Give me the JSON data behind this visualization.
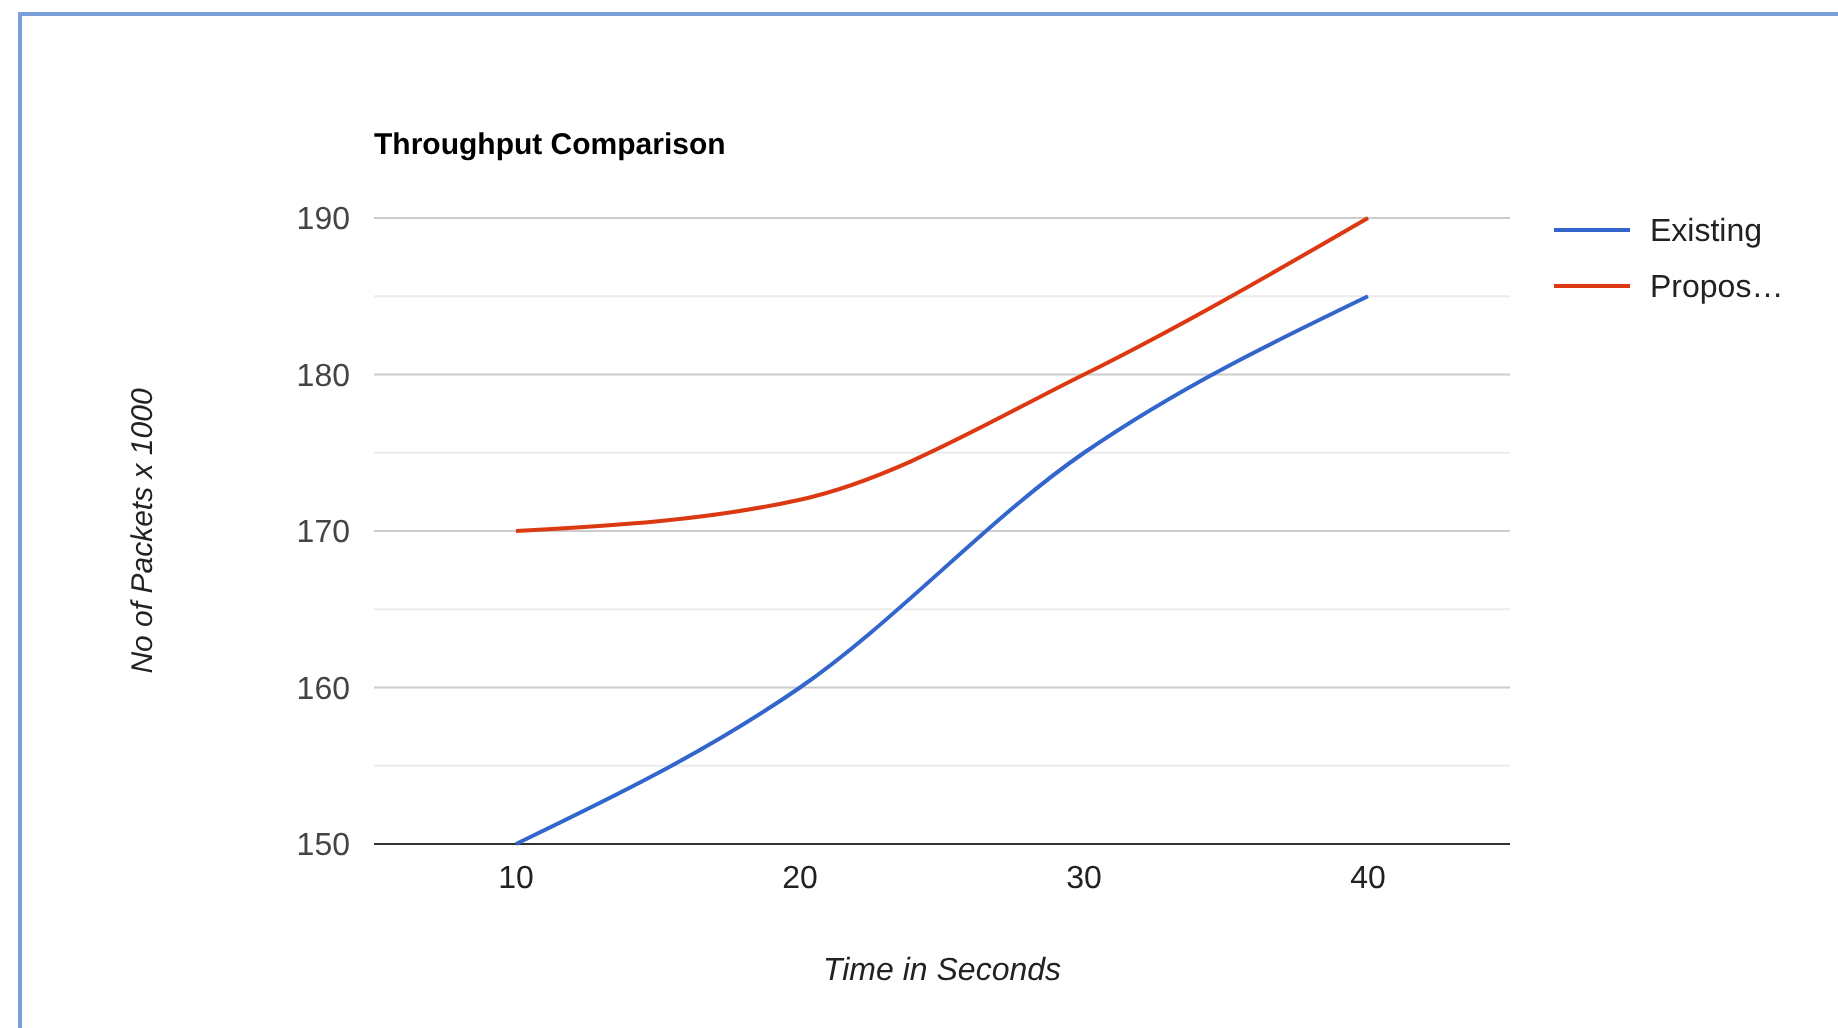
{
  "chart_data": {
    "type": "line",
    "title": "Throughput Comparison",
    "xlabel": "Time in Seconds",
    "ylabel": "No of Packets x 1000",
    "x": [
      10,
      20,
      30,
      40
    ],
    "series": [
      {
        "name": "Existing",
        "color": "#3366cc",
        "values": [
          150,
          160,
          175,
          185
        ]
      },
      {
        "name": "Propos…",
        "color": "#dc3912",
        "values": [
          170,
          172,
          180,
          190
        ]
      }
    ],
    "xlim": [
      5,
      45
    ],
    "xticks": [
      10,
      20,
      30,
      40
    ],
    "ylim": [
      150,
      190
    ],
    "yticks": [
      150,
      {
        "value": 155,
        "label": null
      },
      160,
      {
        "value": 165,
        "label": null
      },
      170,
      {
        "value": 175,
        "label": null
      },
      180,
      {
        "value": 185,
        "label": null
      },
      190
    ],
    "grid": "y",
    "legend": "right",
    "marker": "none",
    "line_style": "solid"
  }
}
